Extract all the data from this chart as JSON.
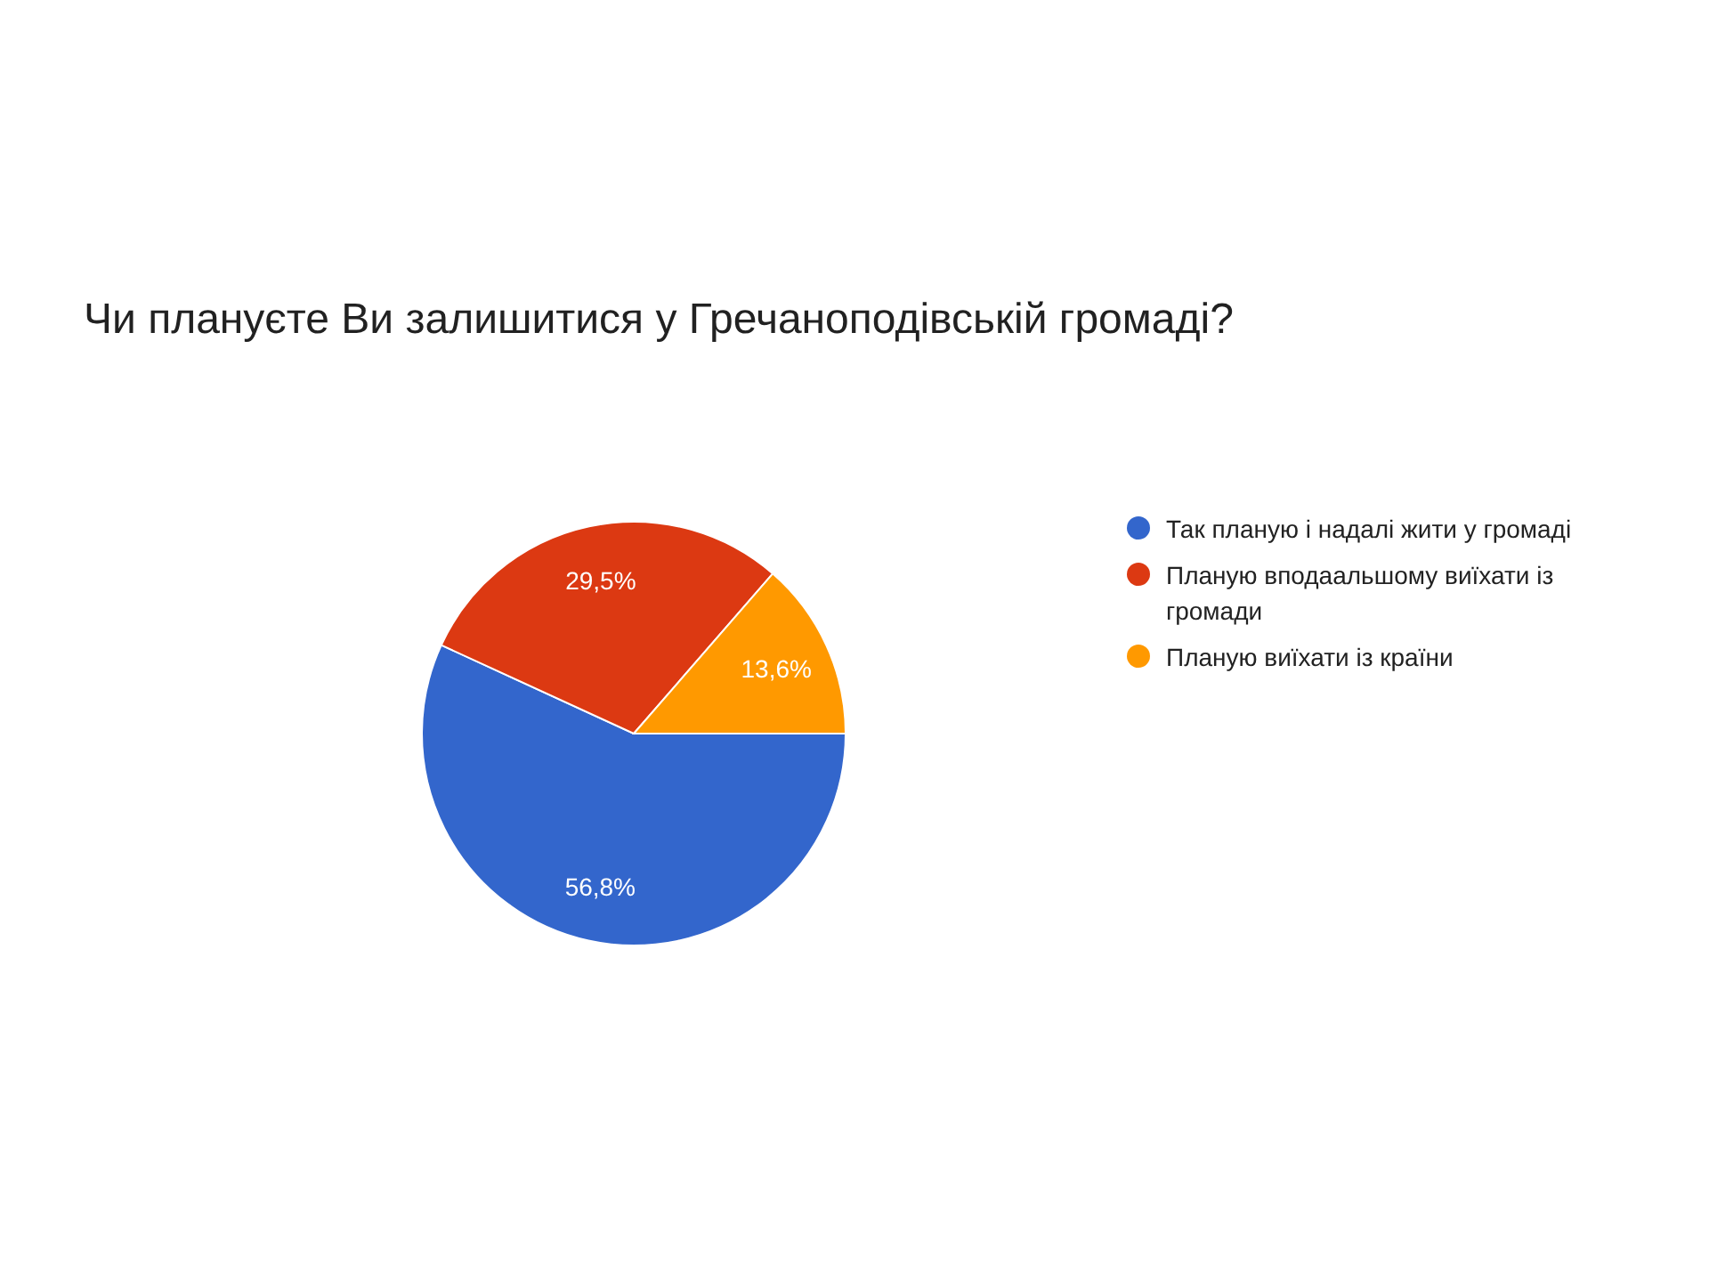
{
  "chart_data": {
    "type": "pie",
    "title": "Чи плануєте Ви залишитися у Гречаноподівській громаді?",
    "categories": [
      "Так планую і надалі жити у громаді",
      "Планую вподаальшому виїхати із громади",
      "Планую виїхати із країни"
    ],
    "values": [
      56.8,
      29.5,
      13.6
    ],
    "colors": [
      "#3366cc",
      "#dc3912",
      "#ff9900"
    ],
    "value_labels": [
      "56,8%",
      "29,5%",
      "13,6%"
    ],
    "legend": "right"
  }
}
